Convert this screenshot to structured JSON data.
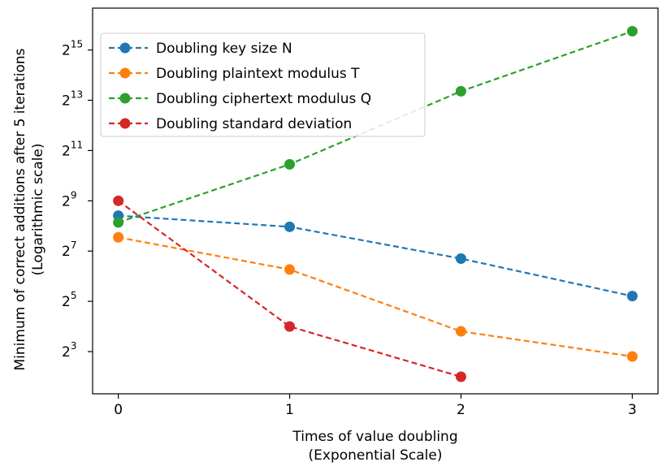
{
  "chart_data": {
    "type": "line",
    "x": [
      0,
      1,
      2,
      3
    ],
    "xlabel": [
      "Times of value doubling",
      "(Exponential Scale)"
    ],
    "ylabel": [
      "Minimum of correct additions after 5 iterations",
      "(Logarithmic scale)"
    ],
    "yscale": "log2",
    "xlim": [
      -0.15,
      3.15
    ],
    "ylim": [
      2.5,
      104000
    ],
    "xticks": [
      "0",
      "1",
      "2",
      "3"
    ],
    "yticks": [
      {
        "base": "2",
        "exp": "3",
        "value": 8
      },
      {
        "base": "2",
        "exp": "5",
        "value": 32
      },
      {
        "base": "2",
        "exp": "7",
        "value": 128
      },
      {
        "base": "2",
        "exp": "9",
        "value": 512
      },
      {
        "base": "2",
        "exp": "11",
        "value": 2048
      },
      {
        "base": "2",
        "exp": "13",
        "value": 8192
      },
      {
        "base": "2",
        "exp": "15",
        "value": 32768
      }
    ],
    "grid": false,
    "legend_position": "top-left",
    "series": [
      {
        "name": "Doubling key size N",
        "color": "#1f77b4",
        "x": [
          0,
          1,
          2,
          3
        ],
        "values": [
          340,
          250,
          104,
          37
        ]
      },
      {
        "name": "Doubling plaintext modulus T",
        "color": "#ff7f0e",
        "x": [
          0,
          1,
          2,
          3
        ],
        "values": [
          187,
          77,
          14,
          7
        ]
      },
      {
        "name": "Doubling ciphertext modulus Q",
        "color": "#2ca02c",
        "x": [
          0,
          1,
          2,
          3
        ],
        "values": [
          282,
          1400,
          10500,
          55000
        ]
      },
      {
        "name": "Doubling standard deviation",
        "color": "#d62728",
        "x": [
          0,
          1,
          2
        ],
        "values": [
          512,
          16,
          4
        ]
      }
    ]
  }
}
